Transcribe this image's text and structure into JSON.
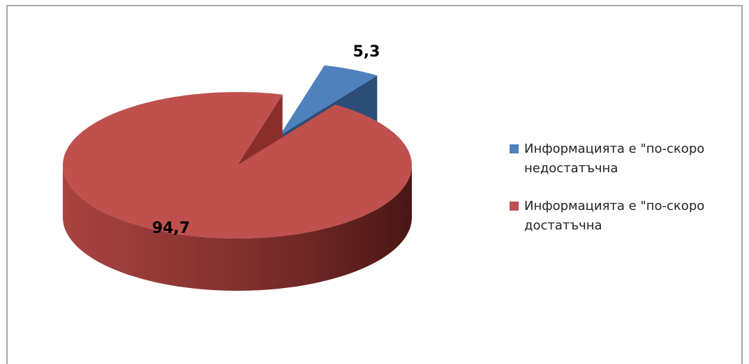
{
  "chart_data": {
    "type": "pie",
    "categories": [
      "Информацията е \"по-скоро недостатъчна",
      "Информацията е \"по-скоро достатъчна"
    ],
    "values": [
      5.3,
      94.7
    ],
    "value_labels": [
      "5,3",
      "94,7"
    ],
    "colors": [
      "#4f81bd",
      "#c0504d"
    ],
    "legend": "right"
  }
}
